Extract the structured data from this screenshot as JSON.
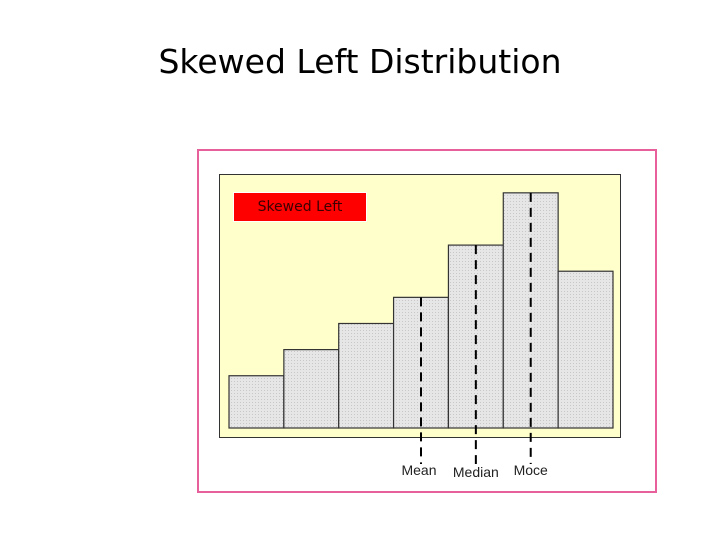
{
  "slide": {
    "title": "Skewed Left Distribution"
  },
  "chart_data": {
    "type": "bar",
    "label_box": "Skewed Left",
    "values": [
      2,
      3,
      4,
      5,
      7,
      9,
      6
    ],
    "ylim": [
      0,
      9.3
    ],
    "grid": false,
    "markers": [
      {
        "label": "Mean",
        "bin": 3.5
      },
      {
        "label": "Median",
        "bin": 4.5
      },
      {
        "label": "Moce",
        "bin": 5.5
      }
    ],
    "colors": {
      "plot_background": "#ffffcc",
      "bar_fill": "#e3e3e3",
      "bar_stroke": "#333333",
      "label_box": "#ff0000",
      "frame_border": "#e7609b"
    }
  }
}
